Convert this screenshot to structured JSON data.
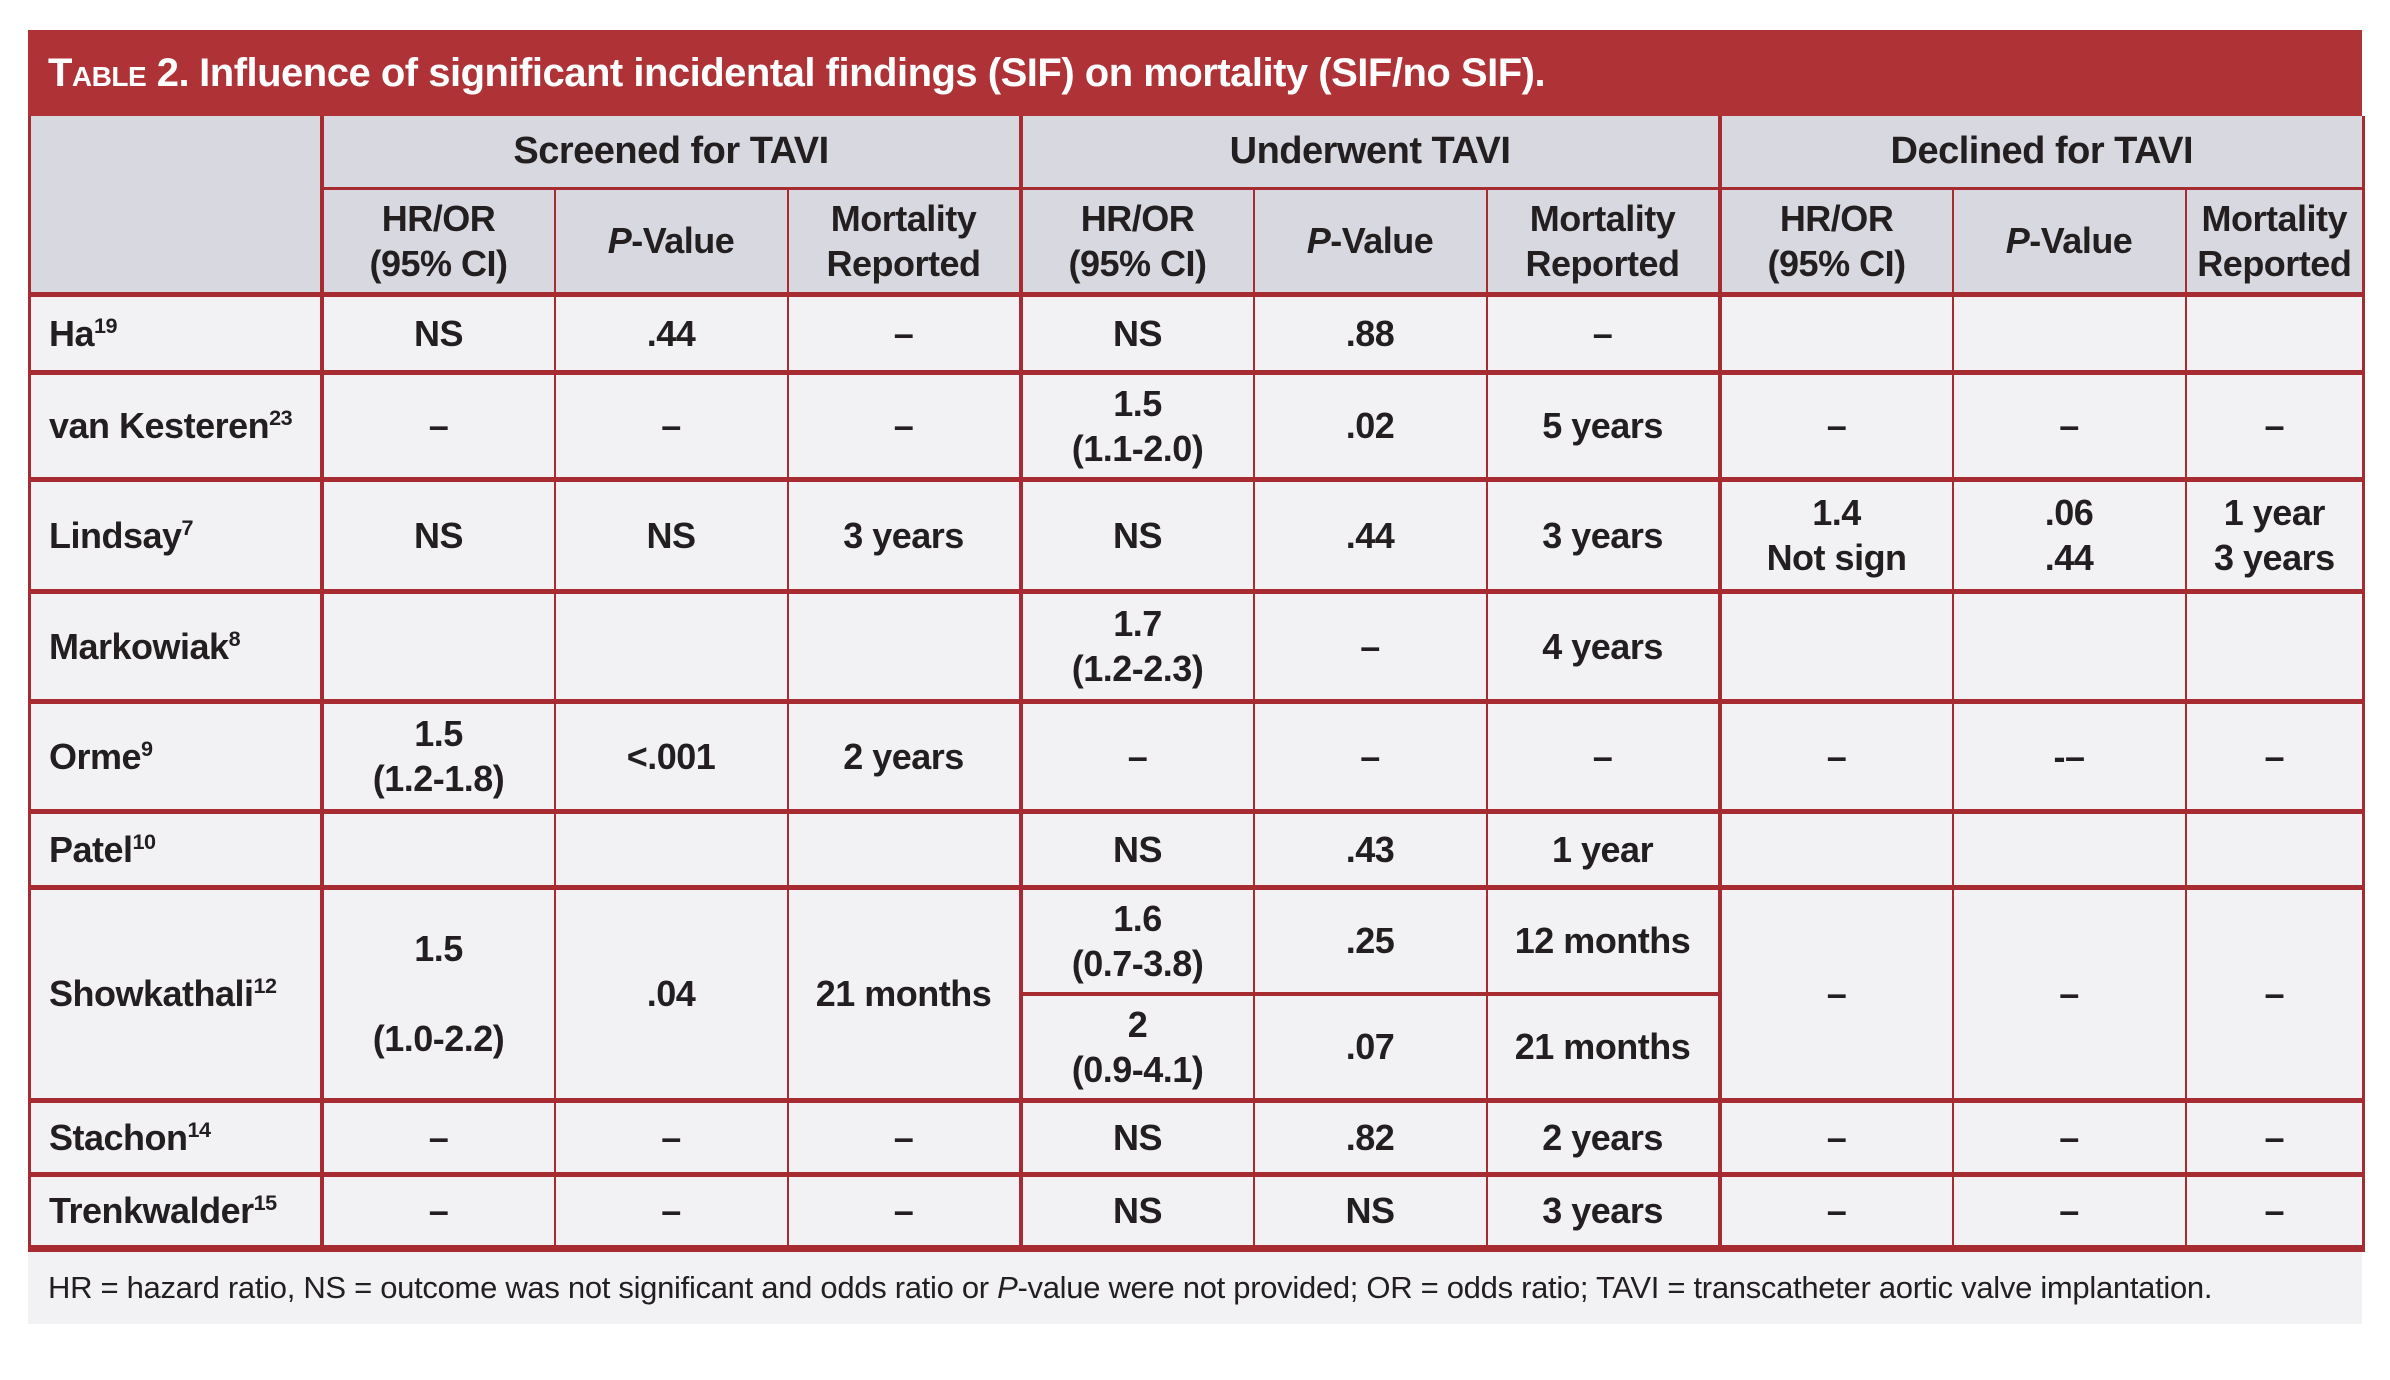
{
  "title": {
    "prefix": "Table 2.",
    "rest": "Influence of significant incidental findings (SIF) on mortality (SIF/no SIF)."
  },
  "colors": {
    "title_bar_red": "#AF3237",
    "border_red": "#A62C32",
    "header_bg": "#D8D8E0",
    "row_bg": "#F2F2F4",
    "text": "#231F20",
    "title_text": "#FFFFFF"
  },
  "groups": [
    {
      "label": "Screened for TAVI"
    },
    {
      "label": "Underwent TAVI"
    },
    {
      "label": "Declined for TAVI"
    }
  ],
  "subheaders": {
    "hr": "HR/OR\n(95% CI)",
    "p_italic": "P",
    "p_rest": "-Value",
    "mortality": "Mortality\nReported"
  },
  "rows": [
    {
      "study": "Ha",
      "ref": "19",
      "s": {
        "hr": "NS",
        "p": ".44",
        "mort": "–"
      },
      "u": {
        "hr": "NS",
        "p": ".88",
        "mort": "–"
      },
      "d": {
        "hr": "",
        "p": "",
        "mort": ""
      }
    },
    {
      "study": "van Kesteren",
      "ref": "23",
      "s": {
        "hr": "–",
        "p": "–",
        "mort": "–"
      },
      "u": {
        "hr": "1.5\n(1.1-2.0)",
        "p": ".02",
        "mort": "5 years"
      },
      "d": {
        "hr": "–",
        "p": "–",
        "mort": "–"
      }
    },
    {
      "study": "Lindsay",
      "ref": "7",
      "s": {
        "hr": "NS",
        "p": "NS",
        "mort": "3 years"
      },
      "u": {
        "hr": "NS",
        "p": ".44",
        "mort": "3 years"
      },
      "d": {
        "hr": "1.4\nNot sign",
        "p": ".06\n.44",
        "mort": "1 year\n3 years"
      }
    },
    {
      "study": "Markowiak",
      "ref": "8",
      "s": {
        "hr": "",
        "p": "",
        "mort": ""
      },
      "u": {
        "hr": "1.7\n(1.2-2.3)",
        "p": "–",
        "mort": "4 years"
      },
      "d": {
        "hr": "",
        "p": "",
        "mort": ""
      }
    },
    {
      "study": "Orme",
      "ref": "9",
      "s": {
        "hr": "1.5\n(1.2-1.8)",
        "p": "<.001",
        "mort": "2 years"
      },
      "u": {
        "hr": "–",
        "p": "–",
        "mort": "–"
      },
      "d": {
        "hr": "–",
        "p": "-–",
        "mort": "–"
      }
    },
    {
      "study": "Patel",
      "ref": "10",
      "s": {
        "hr": "",
        "p": "",
        "mort": ""
      },
      "u": {
        "hr": "NS",
        "p": ".43",
        "mort": "1 year"
      },
      "d": {
        "hr": "",
        "p": "",
        "mort": ""
      }
    },
    {
      "study": "Showkathali",
      "ref": "12",
      "s": {
        "hr": "1.5\n\n(1.0-2.2)",
        "p": ".04",
        "mort": "21 months"
      },
      "u1": {
        "hr": "1.6\n(0.7-3.8)",
        "p": ".25",
        "mort": "12 months"
      },
      "u2": {
        "hr": "2\n(0.9-4.1)",
        "p": ".07",
        "mort": "21 months"
      },
      "d": {
        "hr": "–",
        "p": "–",
        "mort": "–"
      }
    },
    {
      "study": "Stachon",
      "ref": "14",
      "s": {
        "hr": "–",
        "p": "–",
        "mort": "–"
      },
      "u": {
        "hr": "NS",
        "p": ".82",
        "mort": "2 years"
      },
      "d": {
        "hr": "–",
        "p": "–",
        "mort": "–"
      }
    },
    {
      "study": "Trenkwalder",
      "ref": "15",
      "s": {
        "hr": "–",
        "p": "–",
        "mort": "–"
      },
      "u": {
        "hr": "NS",
        "p": "NS",
        "mort": "3 years"
      },
      "d": {
        "hr": "–",
        "p": "–",
        "mort": "–"
      }
    }
  ],
  "footnote": {
    "part1": "HR = hazard ratio, NS = outcome was not significant and odds ratio or ",
    "p_italic": "P",
    "part2": "-value were not provided; OR = odds ratio; TAVI = transcatheter aortic valve implantation."
  }
}
